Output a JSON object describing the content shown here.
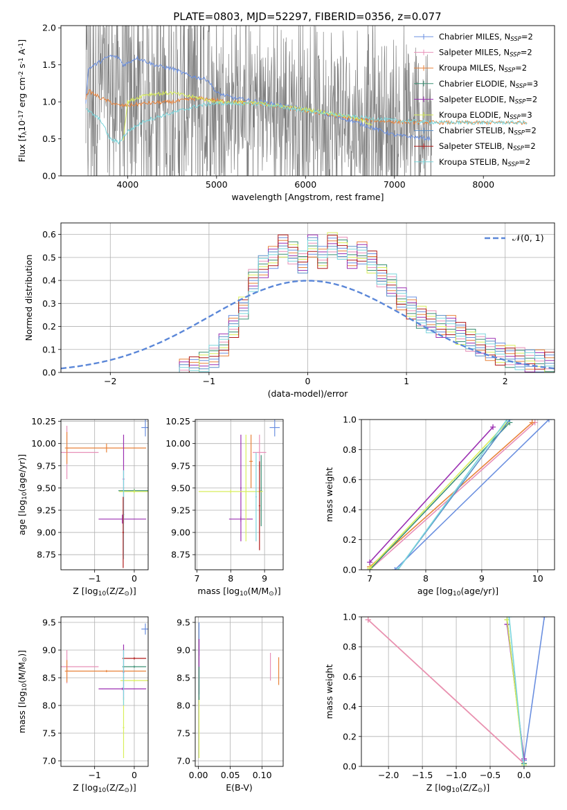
{
  "title": "PLATE=0803, MJD=52297, FIBERID=0356, z=0.077",
  "legend": [
    {
      "label": "Chabrier MILES, N$_{SSP}$=2",
      "text": "Chabrier MILES, N",
      "sub": "SSP",
      "suffix": "=2",
      "color": "#6a8fe0"
    },
    {
      "label": "Salpeter MILES, N$_{SSP}$=2",
      "text": "Salpeter MILES, N",
      "sub": "SSP",
      "suffix": "=2",
      "color": "#e88fb8"
    },
    {
      "label": "Kroupa MILES, N$_{SSP}$=2",
      "text": "Kroupa MILES, N",
      "sub": "SSP",
      "suffix": "=2",
      "color": "#e8823a"
    },
    {
      "label": "Chabrier ELODIE, N$_{SSP}$=3",
      "text": "Chabrier ELODIE, N",
      "sub": "SSP",
      "suffix": "=3",
      "color": "#3a8f74"
    },
    {
      "label": "Salpeter ELODIE, N$_{SSP}$=2",
      "text": "Salpeter ELODIE, N",
      "sub": "SSP",
      "suffix": "=2",
      "color": "#9b2fb2"
    },
    {
      "label": "Kroupa ELODIE, N$_{SSP}$=3",
      "text": "Kroupa ELODIE, N",
      "sub": "SSP",
      "suffix": "=3",
      "color": "#d8ee5a"
    },
    {
      "label": "Chabrier STELIB, N$_{SSP}$=2",
      "text": "Chabrier STELIB, N",
      "sub": "SSP",
      "suffix": "=2",
      "color": "#5a8fc8"
    },
    {
      "label": "Salpeter STELIB, N$_{SSP}$=2",
      "text": "Salpeter STELIB, N",
      "sub": "SSP",
      "suffix": "=2",
      "color": "#b01818"
    },
    {
      "label": "Kroupa STELIB, N$_{SSP}$=2",
      "text": "Kroupa STELIB, N",
      "sub": "SSP",
      "suffix": "=2",
      "color": "#7ad6dc"
    }
  ],
  "chart_data": [
    {
      "id": "spectrum",
      "type": "line",
      "xlabel": "wavelength [Angstrom, rest frame]",
      "ylabel": "Flux [f$_\\lambda$10$^{-17}$ erg cm$^{-2}$ s$^{-1}$ A$^{-1}$]",
      "xlim": [
        3250,
        8800
      ],
      "ylim": [
        0,
        2.03
      ],
      "xticks": [
        4000,
        5000,
        6000,
        7000,
        8000
      ],
      "yticks": [
        0.0,
        0.5,
        1.0,
        1.5,
        2.0
      ],
      "grid": false,
      "data_range": [
        3530,
        7420
      ],
      "model_range": [
        3530,
        8490
      ],
      "data_color": "#808080",
      "model_knots": [
        {
          "name": "Chabrier MILES",
          "color": "#6a8fe0",
          "x": [
            3530,
            3560,
            3700,
            3800,
            3900,
            3950,
            4000,
            4100,
            4200,
            4300,
            4400,
            4500,
            4700,
            4900,
            5000,
            5200,
            5500,
            6000,
            6500,
            7000,
            7400
          ],
          "y": [
            1.0,
            1.45,
            1.55,
            1.62,
            1.6,
            1.5,
            1.52,
            1.6,
            1.55,
            1.5,
            1.47,
            1.45,
            1.35,
            1.3,
            1.12,
            1.05,
            1.0,
            0.9,
            0.75,
            0.55,
            0.5
          ]
        },
        {
          "name": "Kroupa MILES",
          "color": "#e8823a",
          "x": [
            3530,
            3560,
            3700,
            3900,
            4000,
            4200,
            4500,
            4800,
            5000,
            5500,
            6000,
            6500,
            7000,
            7500,
            8000,
            8490
          ],
          "y": [
            1.05,
            1.15,
            1.05,
            0.95,
            0.95,
            0.98,
            1.0,
            1.05,
            1.02,
            0.97,
            0.88,
            0.78,
            0.73,
            0.72,
            0.72,
            0.72
          ]
        },
        {
          "name": "Kroupa ELODIE",
          "color": "#d8ee5a",
          "x": [
            3950,
            4000,
            4200,
            4500,
            4800,
            5000,
            5500,
            6000,
            6500,
            6750
          ],
          "y": [
            0.5,
            1.0,
            1.1,
            1.12,
            1.05,
            1.0,
            0.98,
            0.9,
            0.8,
            0.7
          ]
        },
        {
          "name": "Kroupa STELIB",
          "color": "#7ad6dc",
          "x": [
            3530,
            3700,
            3800,
            3900,
            4000,
            4200,
            4500,
            4800,
            5000,
            5500,
            6000,
            6500,
            7000,
            7500,
            8000,
            8490
          ],
          "y": [
            0.9,
            0.75,
            0.5,
            0.45,
            0.6,
            0.75,
            0.85,
            0.95,
            0.98,
            0.97,
            0.88,
            0.8,
            0.75,
            0.72,
            0.72,
            0.72
          ]
        }
      ],
      "data_knots": {
        "x": [
          3530,
          3700,
          3900,
          4000,
          4200,
          4500,
          5000,
          5500,
          6000,
          6500,
          7000,
          7420
        ],
        "y": [
          1.1,
          1.2,
          1.1,
          1.05,
          1.05,
          1.05,
          1.0,
          0.95,
          0.85,
          0.75,
          0.65,
          0.6
        ]
      }
    },
    {
      "id": "residuals",
      "type": "step",
      "xlabel": "(data-model)/error",
      "ylabel": "Normed distribution",
      "xlim": [
        -2.5,
        2.5
      ],
      "ylim": [
        0,
        0.65
      ],
      "xticks": [
        -2,
        -1,
        0,
        1,
        2
      ],
      "yticks": [
        0.0,
        0.1,
        0.2,
        0.3,
        0.4,
        0.5,
        0.6
      ],
      "grid": true,
      "gaussian": {
        "label": "$\\mathcal{N}(0,1)$",
        "text": "𝒩(0, 1)",
        "mean": 0,
        "sigma": 1,
        "color": "#5b87d8"
      },
      "bin_edges": [
        -1.3,
        -1.2,
        -1.1,
        -1.0,
        -0.9,
        -0.8,
        -0.7,
        -0.6,
        -0.5,
        -0.4,
        -0.3,
        -0.2,
        -0.1,
        0.0,
        0.1,
        0.2,
        0.3,
        0.4,
        0.5,
        0.6,
        0.7,
        0.8,
        0.9,
        1.0,
        1.1,
        1.2,
        1.3,
        1.4,
        1.5,
        1.6,
        1.7,
        1.8,
        1.9,
        2.0,
        2.1,
        2.2,
        2.3,
        2.4,
        2.5
      ],
      "histogram": [
        0.01,
        0.02,
        0.04,
        0.07,
        0.12,
        0.2,
        0.28,
        0.4,
        0.46,
        0.5,
        0.55,
        0.52,
        0.48,
        0.55,
        0.5,
        0.56,
        0.54,
        0.5,
        0.52,
        0.48,
        0.42,
        0.38,
        0.32,
        0.28,
        0.24,
        0.22,
        0.2,
        0.2,
        0.17,
        0.14,
        0.12,
        0.1,
        0.08,
        0.07,
        0.06,
        0.05,
        0.05,
        0.04
      ],
      "histogram_colors": [
        "#6a8fe0",
        "#e88fb8",
        "#e8823a",
        "#3a8f74",
        "#9b2fb2",
        "#d8ee5a",
        "#5a8fc8",
        "#b01818",
        "#7ad6dc"
      ]
    },
    {
      "id": "age_vs_Z",
      "type": "errorbar",
      "xlabel": "Z [log$_{10}$(Z/Z$_\\odot$)]",
      "ylabel": "age  [log$_{10}$(age/yr)]",
      "xlim": [
        -1.85,
        0.35
      ],
      "ylim": [
        8.58,
        10.27
      ],
      "xticks": [
        -1,
        0
      ],
      "yticks": [
        8.75,
        9.0,
        9.25,
        9.5,
        9.75,
        10.0,
        10.25
      ],
      "grid": true,
      "points": [
        {
          "color": "#e88fb8",
          "x": -1.7,
          "xerr": 0.8,
          "y": 9.9,
          "yerr": 0.3
        },
        {
          "color": "#e8823a",
          "x": -1.7,
          "xerr": 0.05,
          "y": 9.95,
          "yerr": 0.18
        },
        {
          "color": "#e8823a",
          "x": -0.7,
          "xerr": 1.0,
          "y": 9.95,
          "yerr": 0.05
        },
        {
          "color": "#9b2fb2",
          "x": -0.3,
          "xerr": 0.6,
          "y": 9.15,
          "yerr": 0.05
        },
        {
          "color": "#9b2fb2",
          "x": -0.27,
          "xerr": 0.02,
          "y": 9.6,
          "yerr": 0.5
        },
        {
          "color": "#3a8f74",
          "x": 0.0,
          "xerr": 0.4,
          "y": 9.47,
          "yerr": 0.02
        },
        {
          "color": "#d8ee5a",
          "x": 0.0,
          "xerr": 0.38,
          "y": 9.46,
          "yerr": 0.02
        },
        {
          "color": "#7ad6dc",
          "x": -0.27,
          "xerr": 0.02,
          "y": 9.2,
          "yerr": 0.5
        },
        {
          "color": "#b01818",
          "x": -0.28,
          "xerr": 0.02,
          "y": 9.0,
          "yerr": 0.4
        },
        {
          "color": "#6a8fe0",
          "x": 0.28,
          "xerr": 0.1,
          "y": 10.18,
          "yerr": 0.1
        }
      ]
    },
    {
      "id": "age_vs_mass",
      "type": "errorbar",
      "xlabel": "mass [log$_{10}$(M/M$_\\odot$)]",
      "ylabel": "",
      "xlim": [
        6.95,
        9.55
      ],
      "ylim": [
        8.58,
        10.27
      ],
      "xticks": [
        7,
        8,
        9
      ],
      "yticks": [
        8.75,
        9.0,
        9.25,
        9.5,
        9.75,
        10.0,
        10.25
      ],
      "grid": true,
      "points": [
        {
          "color": "#e88fb8",
          "x": 8.85,
          "xerr": 0.2,
          "y": 9.9,
          "yerr": 0.2
        },
        {
          "color": "#e8823a",
          "x": 8.6,
          "xerr": 0.05,
          "y": 9.8,
          "yerr": 0.3
        },
        {
          "color": "#9b2fb2",
          "x": 8.3,
          "xerr": 0.35,
          "y": 9.15,
          "yerr": 0.03
        },
        {
          "color": "#9b2fb2",
          "x": 8.3,
          "xerr": 0.02,
          "y": 9.5,
          "yerr": 0.6
        },
        {
          "color": "#3a8f74",
          "x": 8.9,
          "xerr": 0.02,
          "y": 9.47,
          "yerr": 0.4
        },
        {
          "color": "#d8ee5a",
          "x": 8.0,
          "xerr": 0.95,
          "y": 9.46,
          "yerr": 0.02
        },
        {
          "color": "#d8ee5a",
          "x": 8.45,
          "xerr": 0.02,
          "y": 9.5,
          "yerr": 0.6
        },
        {
          "color": "#b01818",
          "x": 8.85,
          "xerr": 0.02,
          "y": 9.3,
          "yerr": 0.5
        },
        {
          "color": "#7ad6dc",
          "x": 8.75,
          "xerr": 0.02,
          "y": 9.4,
          "yerr": 0.5
        },
        {
          "color": "#6a8fe0",
          "x": 9.3,
          "xerr": 0.15,
          "y": 10.18,
          "yerr": 0.1
        }
      ]
    },
    {
      "id": "weight_vs_age",
      "type": "line",
      "xlabel": "age  [log$_{10}$(age/yr)]",
      "ylabel": "mass weight",
      "xlim": [
        6.85,
        10.3
      ],
      "ylim": [
        0,
        1.0
      ],
      "xticks": [
        7,
        8,
        9,
        10
      ],
      "yticks": [
        0.0,
        0.2,
        0.4,
        0.6,
        0.8,
        1.0
      ],
      "grid": true,
      "series": [
        {
          "color": "#6a8fe0",
          "x": [
            7.45,
            10.2
          ],
          "y": [
            0.0,
            1.0
          ]
        },
        {
          "color": "#e88fb8",
          "x": [
            7.0,
            9.95
          ],
          "y": [
            0.0,
            0.98
          ]
        },
        {
          "color": "#e8823a",
          "x": [
            7.0,
            9.9
          ],
          "y": [
            0.02,
            0.98
          ]
        },
        {
          "color": "#3a8f74",
          "x": [
            7.0,
            9.5
          ],
          "y": [
            0.0,
            0.98
          ]
        },
        {
          "color": "#9b2fb2",
          "x": [
            7.0,
            9.2
          ],
          "y": [
            0.05,
            0.95
          ]
        },
        {
          "color": "#d8ee5a",
          "x": [
            7.0,
            9.45
          ],
          "y": [
            0.01,
            0.98
          ]
        },
        {
          "color": "#5a8fc8",
          "x": [
            7.5,
            9.5
          ],
          "y": [
            0.0,
            1.0
          ]
        },
        {
          "color": "#7ad6dc",
          "x": [
            7.5,
            9.45
          ],
          "y": [
            0.0,
            1.0
          ]
        }
      ]
    },
    {
      "id": "mass_vs_Z",
      "type": "errorbar",
      "xlabel": "Z [log$_{10}$(Z/Z$_\\odot$)]",
      "ylabel": "mass [log$_{10}$(M/M$_\\odot$)]",
      "xlim": [
        -1.85,
        0.35
      ],
      "ylim": [
        6.9,
        9.6
      ],
      "xticks": [
        -1,
        0
      ],
      "yticks": [
        7.0,
        7.5,
        8.0,
        8.5,
        9.0,
        9.5
      ],
      "grid": true,
      "points": [
        {
          "color": "#e88fb8",
          "x": -1.7,
          "xerr": 0.8,
          "y": 8.7,
          "yerr": 0.3
        },
        {
          "color": "#e8823a",
          "x": -1.7,
          "xerr": 0.05,
          "y": 8.62,
          "yerr": 0.2
        },
        {
          "color": "#e8823a",
          "x": -0.7,
          "xerr": 1.0,
          "y": 8.62,
          "yerr": 0.02
        },
        {
          "color": "#9b2fb2",
          "x": -0.3,
          "xerr": 0.6,
          "y": 8.3,
          "yerr": 0.02
        },
        {
          "color": "#9b2fb2",
          "x": -0.27,
          "xerr": 0.02,
          "y": 8.6,
          "yerr": 0.5
        },
        {
          "color": "#b01818",
          "x": 0.0,
          "xerr": 0.3,
          "y": 8.85,
          "yerr": 0.02
        },
        {
          "color": "#3a8f74",
          "x": 0.0,
          "xerr": 0.3,
          "y": 8.7,
          "yerr": 0.02
        },
        {
          "color": "#d8ee5a",
          "x": 0.0,
          "xerr": 0.35,
          "y": 8.45,
          "yerr": 0.02
        },
        {
          "color": "#d8ee5a",
          "x": -0.27,
          "xerr": 0.02,
          "y": 7.6,
          "yerr": 0.55
        },
        {
          "color": "#7ad6dc",
          "x": -0.27,
          "xerr": 0.02,
          "y": 8.5,
          "yerr": 0.5
        },
        {
          "color": "#6a8fe0",
          "x": 0.28,
          "xerr": 0.1,
          "y": 9.38,
          "yerr": 0.1
        }
      ]
    },
    {
      "id": "mass_vs_EBV",
      "type": "errorbar",
      "xlabel": "E(B-V)",
      "ylabel": "",
      "xlim": [
        -0.005,
        0.133
      ],
      "ylim": [
        6.9,
        9.6
      ],
      "xticks": [
        0.0,
        0.05,
        0.1
      ],
      "yticks": [
        7.0,
        7.5,
        8.0,
        8.5,
        9.0,
        9.5
      ],
      "grid": true,
      "points": [
        {
          "color": "#6a8fe0",
          "x": 0.001,
          "xerr": 0.0,
          "y": 9.2,
          "yerr": 0.3
        },
        {
          "color": "#9b2fb2",
          "x": 0.001,
          "xerr": 0.0,
          "y": 8.7,
          "yerr": 0.5
        },
        {
          "color": "#d8ee5a",
          "x": 0.001,
          "xerr": 0.0,
          "y": 7.6,
          "yerr": 0.55
        },
        {
          "color": "#3a8f74",
          "x": 0.001,
          "xerr": 0.0,
          "y": 8.4,
          "yerr": 0.3
        },
        {
          "color": "#e88fb8",
          "x": 0.113,
          "xerr": 0.0,
          "y": 8.7,
          "yerr": 0.25
        },
        {
          "color": "#e8823a",
          "x": 0.126,
          "xerr": 0.0,
          "y": 8.62,
          "yerr": 0.25
        }
      ]
    },
    {
      "id": "weight_vs_Z",
      "type": "line",
      "xlabel": "Z [log$_{10}$(Z/Z$_\\odot$)]",
      "ylabel": "mass weight",
      "xlim": [
        -2.4,
        0.45
      ],
      "ylim": [
        0,
        1.0
      ],
      "xticks": [
        -2.0,
        -1.5,
        -1.0,
        -0.5,
        0.0
      ],
      "yticks": [
        0.0,
        0.2,
        0.4,
        0.6,
        0.8,
        1.0
      ],
      "grid": true,
      "series": [
        {
          "color": "#6a8fe0",
          "x": [
            0.0,
            0.3
          ],
          "y": [
            0.04,
            1.0
          ]
        },
        {
          "color": "#6a8fe0",
          "x": [
            -0.25,
            0.0
          ],
          "y": [
            0.98,
            0.04
          ]
        },
        {
          "color": "#e8823a",
          "x": [
            -2.3,
            0.0
          ],
          "y": [
            0.98,
            0.02
          ]
        },
        {
          "color": "#e88fb8",
          "x": [
            -2.3,
            0.0
          ],
          "y": [
            0.98,
            0.02
          ]
        },
        {
          "color": "#3a8f74",
          "x": [
            -0.25,
            0.0
          ],
          "y": [
            0.98,
            0.02
          ]
        },
        {
          "color": "#9b2fb2",
          "x": [
            -0.25,
            0.0
          ],
          "y": [
            0.95,
            0.05
          ]
        },
        {
          "color": "#d8ee5a",
          "x": [
            -0.25,
            0.0
          ],
          "y": [
            0.98,
            0.01
          ]
        },
        {
          "color": "#7ad6dc",
          "x": [
            -0.22,
            0.0
          ],
          "y": [
            1.0,
            0.0
          ]
        }
      ]
    }
  ]
}
